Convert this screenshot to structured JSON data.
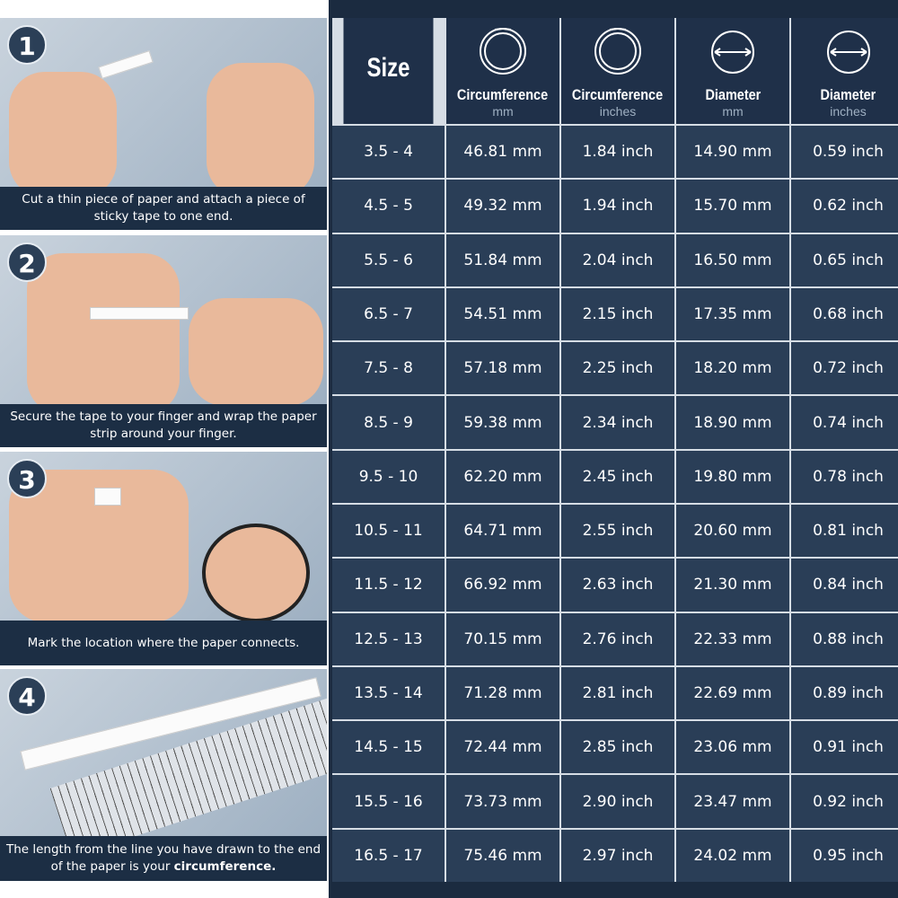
{
  "steps": [
    {
      "number": "1",
      "caption": "Cut a thin piece of paper and attach a piece of sticky tape to one end.",
      "caption_bold": ""
    },
    {
      "number": "2",
      "caption": "Secure the tape to your finger and wrap the paper strip around your finger.",
      "caption_bold": ""
    },
    {
      "number": "3",
      "caption": "Mark the location where the paper connects.",
      "caption_bold": ""
    },
    {
      "number": "4",
      "caption": "The length from the line you have drawn to the end of the paper is your ",
      "caption_bold": "circumference."
    }
  ],
  "table": {
    "headers": [
      {
        "title": "Size",
        "unit": "",
        "icon": ""
      },
      {
        "title": "Circumference",
        "unit": "mm",
        "icon": "ring-circumference-icon"
      },
      {
        "title": "Circumference",
        "unit": "inches",
        "icon": "ring-circumference-icon"
      },
      {
        "title": "Diameter",
        "unit": "mm",
        "icon": "diameter-icon"
      },
      {
        "title": "Diameter",
        "unit": "inches",
        "icon": "diameter-icon"
      }
    ],
    "rows": [
      [
        "3.5 - 4",
        "46.81 mm",
        "1.84 inch",
        "14.90 mm",
        "0.59 inch"
      ],
      [
        "4.5 - 5",
        "49.32 mm",
        "1.94 inch",
        "15.70 mm",
        "0.62 inch"
      ],
      [
        "5.5 - 6",
        "51.84 mm",
        "2.04 inch",
        "16.50 mm",
        "0.65 inch"
      ],
      [
        "6.5 - 7",
        "54.51 mm",
        "2.15 inch",
        "17.35 mm",
        "0.68 inch"
      ],
      [
        "7.5 - 8",
        "57.18 mm",
        "2.25 inch",
        "18.20 mm",
        "0.72 inch"
      ],
      [
        "8.5 - 9",
        "59.38 mm",
        "2.34 inch",
        "18.90 mm",
        "0.74 inch"
      ],
      [
        "9.5 - 10",
        "62.20 mm",
        "2.45 inch",
        "19.80 mm",
        "0.78 inch"
      ],
      [
        "10.5 - 11",
        "64.71 mm",
        "2.55 inch",
        "20.60 mm",
        "0.81 inch"
      ],
      [
        "11.5 - 12",
        "66.92 mm",
        "2.63 inch",
        "21.30 mm",
        "0.84 inch"
      ],
      [
        "12.5 - 13",
        "70.15 mm",
        "2.76 inch",
        "22.33 mm",
        "0.88 inch"
      ],
      [
        "13.5 - 14",
        "71.28 mm",
        "2.81 inch",
        "22.69 mm",
        "0.89 inch"
      ],
      [
        "14.5 - 15",
        "72.44 mm",
        "2.85 inch",
        "23.06 mm",
        "0.91 inch"
      ],
      [
        "15.5 - 16",
        "73.73 mm",
        "2.90 inch",
        "23.47 mm",
        "0.92 inch"
      ],
      [
        "16.5 - 17",
        "75.46 mm",
        "2.97 inch",
        "24.02 mm",
        "0.95 inch"
      ]
    ]
  },
  "colors": {
    "background": "#1b2b40",
    "cell": "#2a3e57",
    "header": "#1f3049",
    "grid": "#d6dde5"
  }
}
